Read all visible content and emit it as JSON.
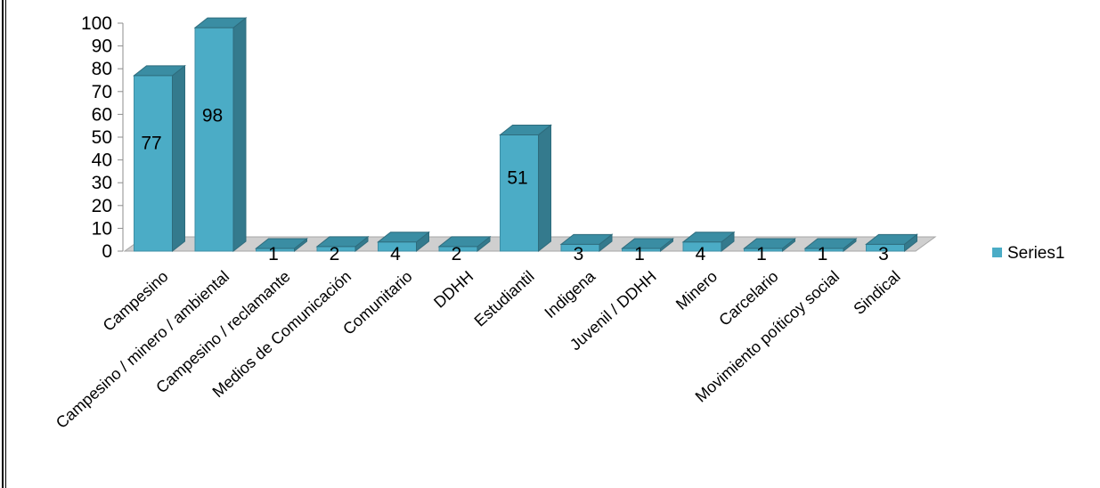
{
  "chart_data": {
    "type": "bar",
    "style": "3d-column",
    "categories": [
      "Campesino",
      "Campesino / minero / ambiental",
      "Campesino / reclamante",
      "Medios de Comunicación",
      "Comunitario",
      "DDHH",
      "Estudiantil",
      "Indigena",
      "Juvenil / DDHH",
      "Minero",
      "Carcelario",
      "Movimiento poíticoy social",
      "Sindical"
    ],
    "series": [
      {
        "name": "Series1",
        "values": [
          77,
          98,
          1,
          2,
          4,
          2,
          51,
          3,
          1,
          4,
          1,
          1,
          3
        ],
        "color": "#4bacc6"
      }
    ],
    "data_labels": true,
    "ylim": [
      0,
      100
    ],
    "yticks": [
      0,
      10,
      20,
      30,
      40,
      50,
      60,
      70,
      80,
      90,
      100
    ],
    "grid": false,
    "legend": "right"
  }
}
